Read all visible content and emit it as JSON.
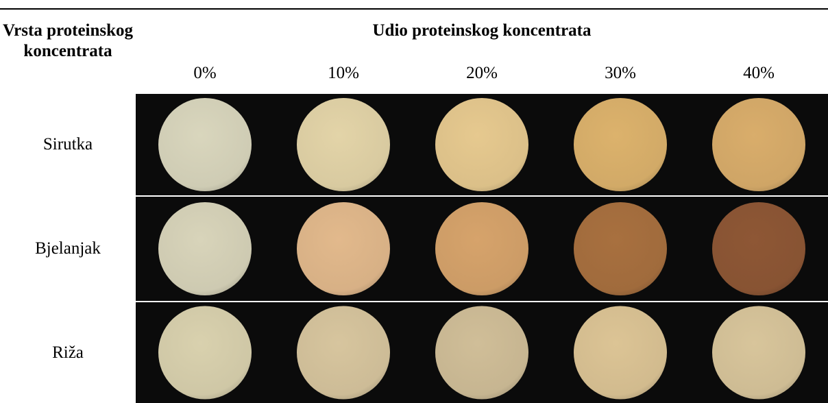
{
  "header": {
    "row_header": "Vrsta proteinskog koncentrata",
    "group_title": "Udio proteinskog koncentrata",
    "columns": [
      "0%",
      "10%",
      "20%",
      "30%",
      "40%"
    ]
  },
  "rows": [
    {
      "label": "Sirutka",
      "colors": [
        "#d9d6bd",
        "#e3d4a8",
        "#e6c98f",
        "#dcb26c",
        "#d9ad6b"
      ]
    },
    {
      "label": "Bjelanjak",
      "colors": [
        "#d8d4ba",
        "#e2b98c",
        "#d6a36b",
        "#a8703f",
        "#8e5735"
      ]
    },
    {
      "label": "Riža",
      "colors": [
        "#d9d1ae",
        "#d7c59e",
        "#d0be98",
        "#dcc495",
        "#d8c59b"
      ]
    }
  ]
}
